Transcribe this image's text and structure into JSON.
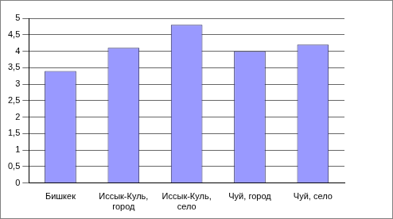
{
  "chart_data": {
    "type": "bar",
    "categories": [
      "Бишкек",
      "Иссык-Куль, город",
      "Иссык-Куль, село",
      "Чуй, город",
      "Чуй, село"
    ],
    "values": [
      3.4,
      4.1,
      4.8,
      4.0,
      4.2
    ],
    "color": "#9999ff",
    "ylim": [
      0,
      5
    ],
    "yticks": [
      0,
      {
        "value": 0.5,
        "label": "0,5"
      },
      1,
      {
        "value": 1.5,
        "label": "1,5"
      },
      2,
      {
        "value": 2.5,
        "label": "2,5"
      },
      3,
      {
        "value": 3.5,
        "label": "3,5"
      },
      4,
      {
        "value": 4.5,
        "label": "4,5"
      },
      5
    ],
    "grid": true
  }
}
